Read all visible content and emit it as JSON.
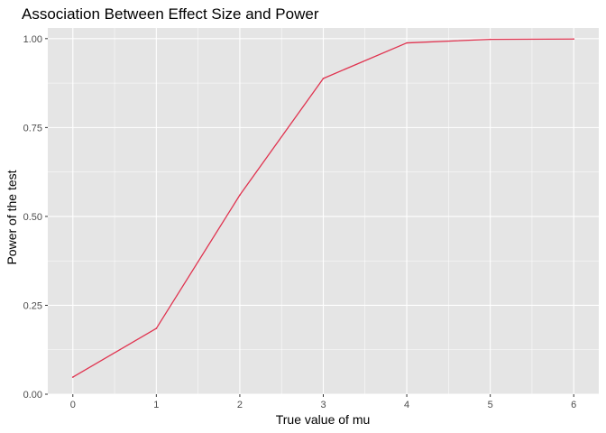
{
  "chart_data": {
    "type": "line",
    "title": "Association Between Effect Size and Power",
    "xlabel": "True value of mu",
    "ylabel": "Power of the test",
    "x": [
      0,
      1,
      2,
      3,
      4,
      5,
      6
    ],
    "series": [
      {
        "values": [
          0.048,
          0.185,
          0.56,
          0.888,
          0.988,
          0.998,
          0.999
        ],
        "color": "#E0334F"
      }
    ],
    "xlim": [
      -0.3,
      6.3
    ],
    "ylim": [
      0,
      1.03
    ],
    "x_ticks": [
      0,
      1,
      2,
      3,
      4,
      5,
      6
    ],
    "x_tick_labels": [
      "0",
      "1",
      "2",
      "3",
      "4",
      "5",
      "6"
    ],
    "y_ticks": [
      0,
      0.25,
      0.5,
      0.75,
      1.0
    ],
    "y_tick_labels": [
      "0.00",
      "0.25",
      "0.50",
      "0.75",
      "1.00"
    ],
    "grid": true,
    "panel_background": "#E5E5E5",
    "grid_color": "#FFFFFF"
  }
}
